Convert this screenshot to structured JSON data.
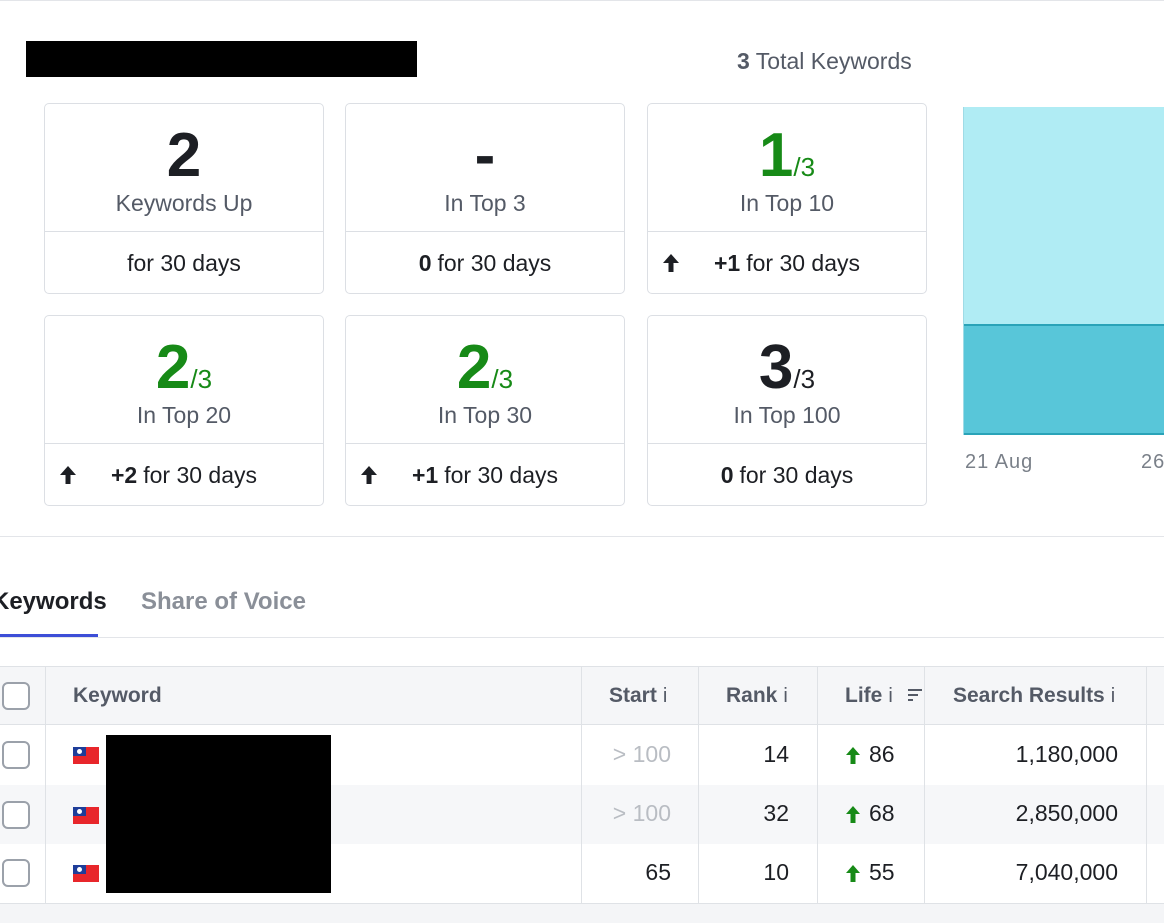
{
  "header": {
    "total_count": "3",
    "total_label": "Total Keywords"
  },
  "cards": [
    {
      "value": "2",
      "fraction": "",
      "label": "Keywords Up",
      "delta": "",
      "period": "for 30 days",
      "trend": "none",
      "color": "#1d1f24"
    },
    {
      "value": "-",
      "fraction": "",
      "label": "In Top 3",
      "delta": "0",
      "period": "for 30 days",
      "trend": "none",
      "color": "#1d1f24"
    },
    {
      "value": "1",
      "fraction": "/3",
      "label": "In Top 10",
      "delta": "+1",
      "period": "for 30 days",
      "trend": "up",
      "color": "#178a17"
    },
    {
      "value": "2",
      "fraction": "/3",
      "label": "In Top 20",
      "delta": "+2",
      "period": "for 30 days",
      "trend": "up",
      "color": "#178a17"
    },
    {
      "value": "2",
      "fraction": "/3",
      "label": "In Top 30",
      "delta": "+1",
      "period": "for 30 days",
      "trend": "up",
      "color": "#178a17"
    },
    {
      "value": "3",
      "fraction": "/3",
      "label": "In Top 100",
      "delta": "0",
      "period": "for 30 days",
      "trend": "none",
      "color": "#1d1f24"
    }
  ],
  "chart": {
    "x_labels": [
      "21 Aug",
      "26"
    ],
    "colors": {
      "upper": "#b0ecf4",
      "lower": "#58c6d9",
      "edge": "#2aa3b8"
    }
  },
  "tabs": [
    {
      "label": "Keywords",
      "active": true
    },
    {
      "label": "Share of Voice",
      "active": false
    }
  ],
  "table": {
    "columns": {
      "keyword": "Keyword",
      "start": "Start",
      "rank": "Rank",
      "life": "Life",
      "search_results": "Search Results",
      "info_glyph": "i"
    },
    "rows": [
      {
        "flag": "taiwan-flag-icon",
        "start": "> 100",
        "start_muted": true,
        "rank": "14",
        "life": "86",
        "life_trend": "up",
        "search_results": "1,180,000"
      },
      {
        "flag": "taiwan-flag-icon",
        "start": "> 100",
        "start_muted": true,
        "rank": "32",
        "life": "68",
        "life_trend": "up",
        "search_results": "2,850,000"
      },
      {
        "flag": "taiwan-flag-icon",
        "start": "65",
        "start_muted": false,
        "rank": "10",
        "life": "55",
        "life_trend": "up",
        "search_results": "7,040,000"
      }
    ]
  }
}
